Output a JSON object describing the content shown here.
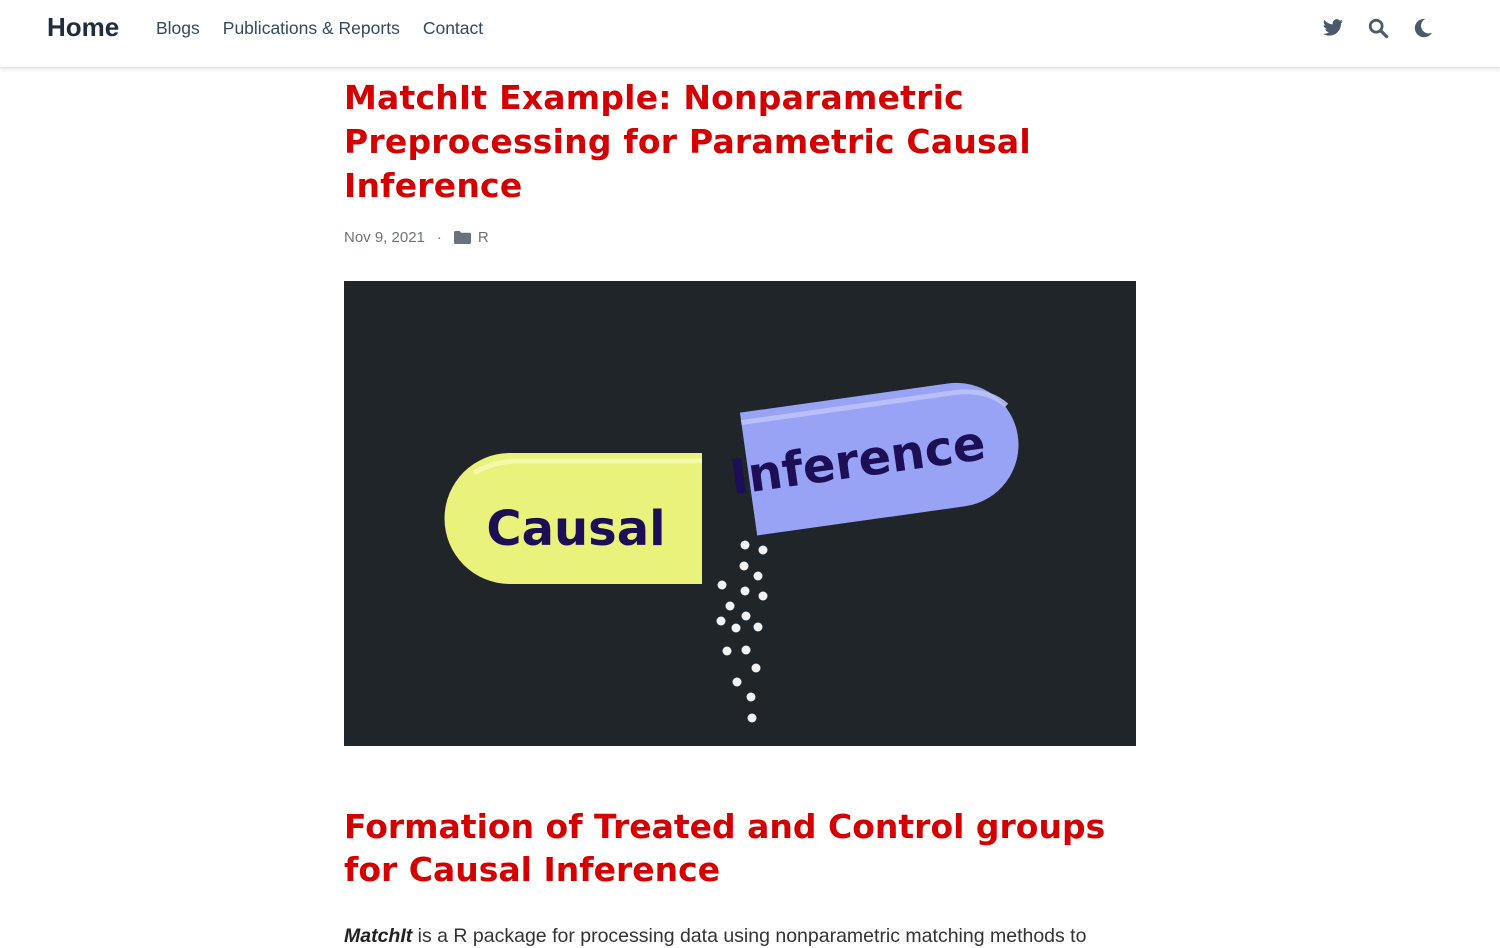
{
  "navbar": {
    "brand": "Home",
    "links": [
      "Blogs",
      "Publications & Reports",
      "Contact"
    ],
    "icons": [
      "twitter-icon",
      "search-icon",
      "moon-icon"
    ]
  },
  "post": {
    "title": "MatchIt Example: Nonparametric Preprocessing for Parametric Causal Inference",
    "date": "Nov 9, 2021",
    "separator": "·",
    "category": "R",
    "hero": {
      "left_capsule_text": "Causal",
      "right_capsule_text": "Inference",
      "background_color": "#1f2529",
      "left_capsule_color": "#e9f27a",
      "right_capsule_color": "#98a3f5",
      "capsule_text_color": "#1c0f55"
    },
    "section_title": "Formation of Treated and Control groups for Causal Inference",
    "paragraph_emphasis": "MatchIt",
    "paragraph_rest": " is a R package for processing data using nonparametric matching methods to"
  },
  "colors": {
    "accent": "#d40000",
    "nav_text": "#34495e"
  }
}
